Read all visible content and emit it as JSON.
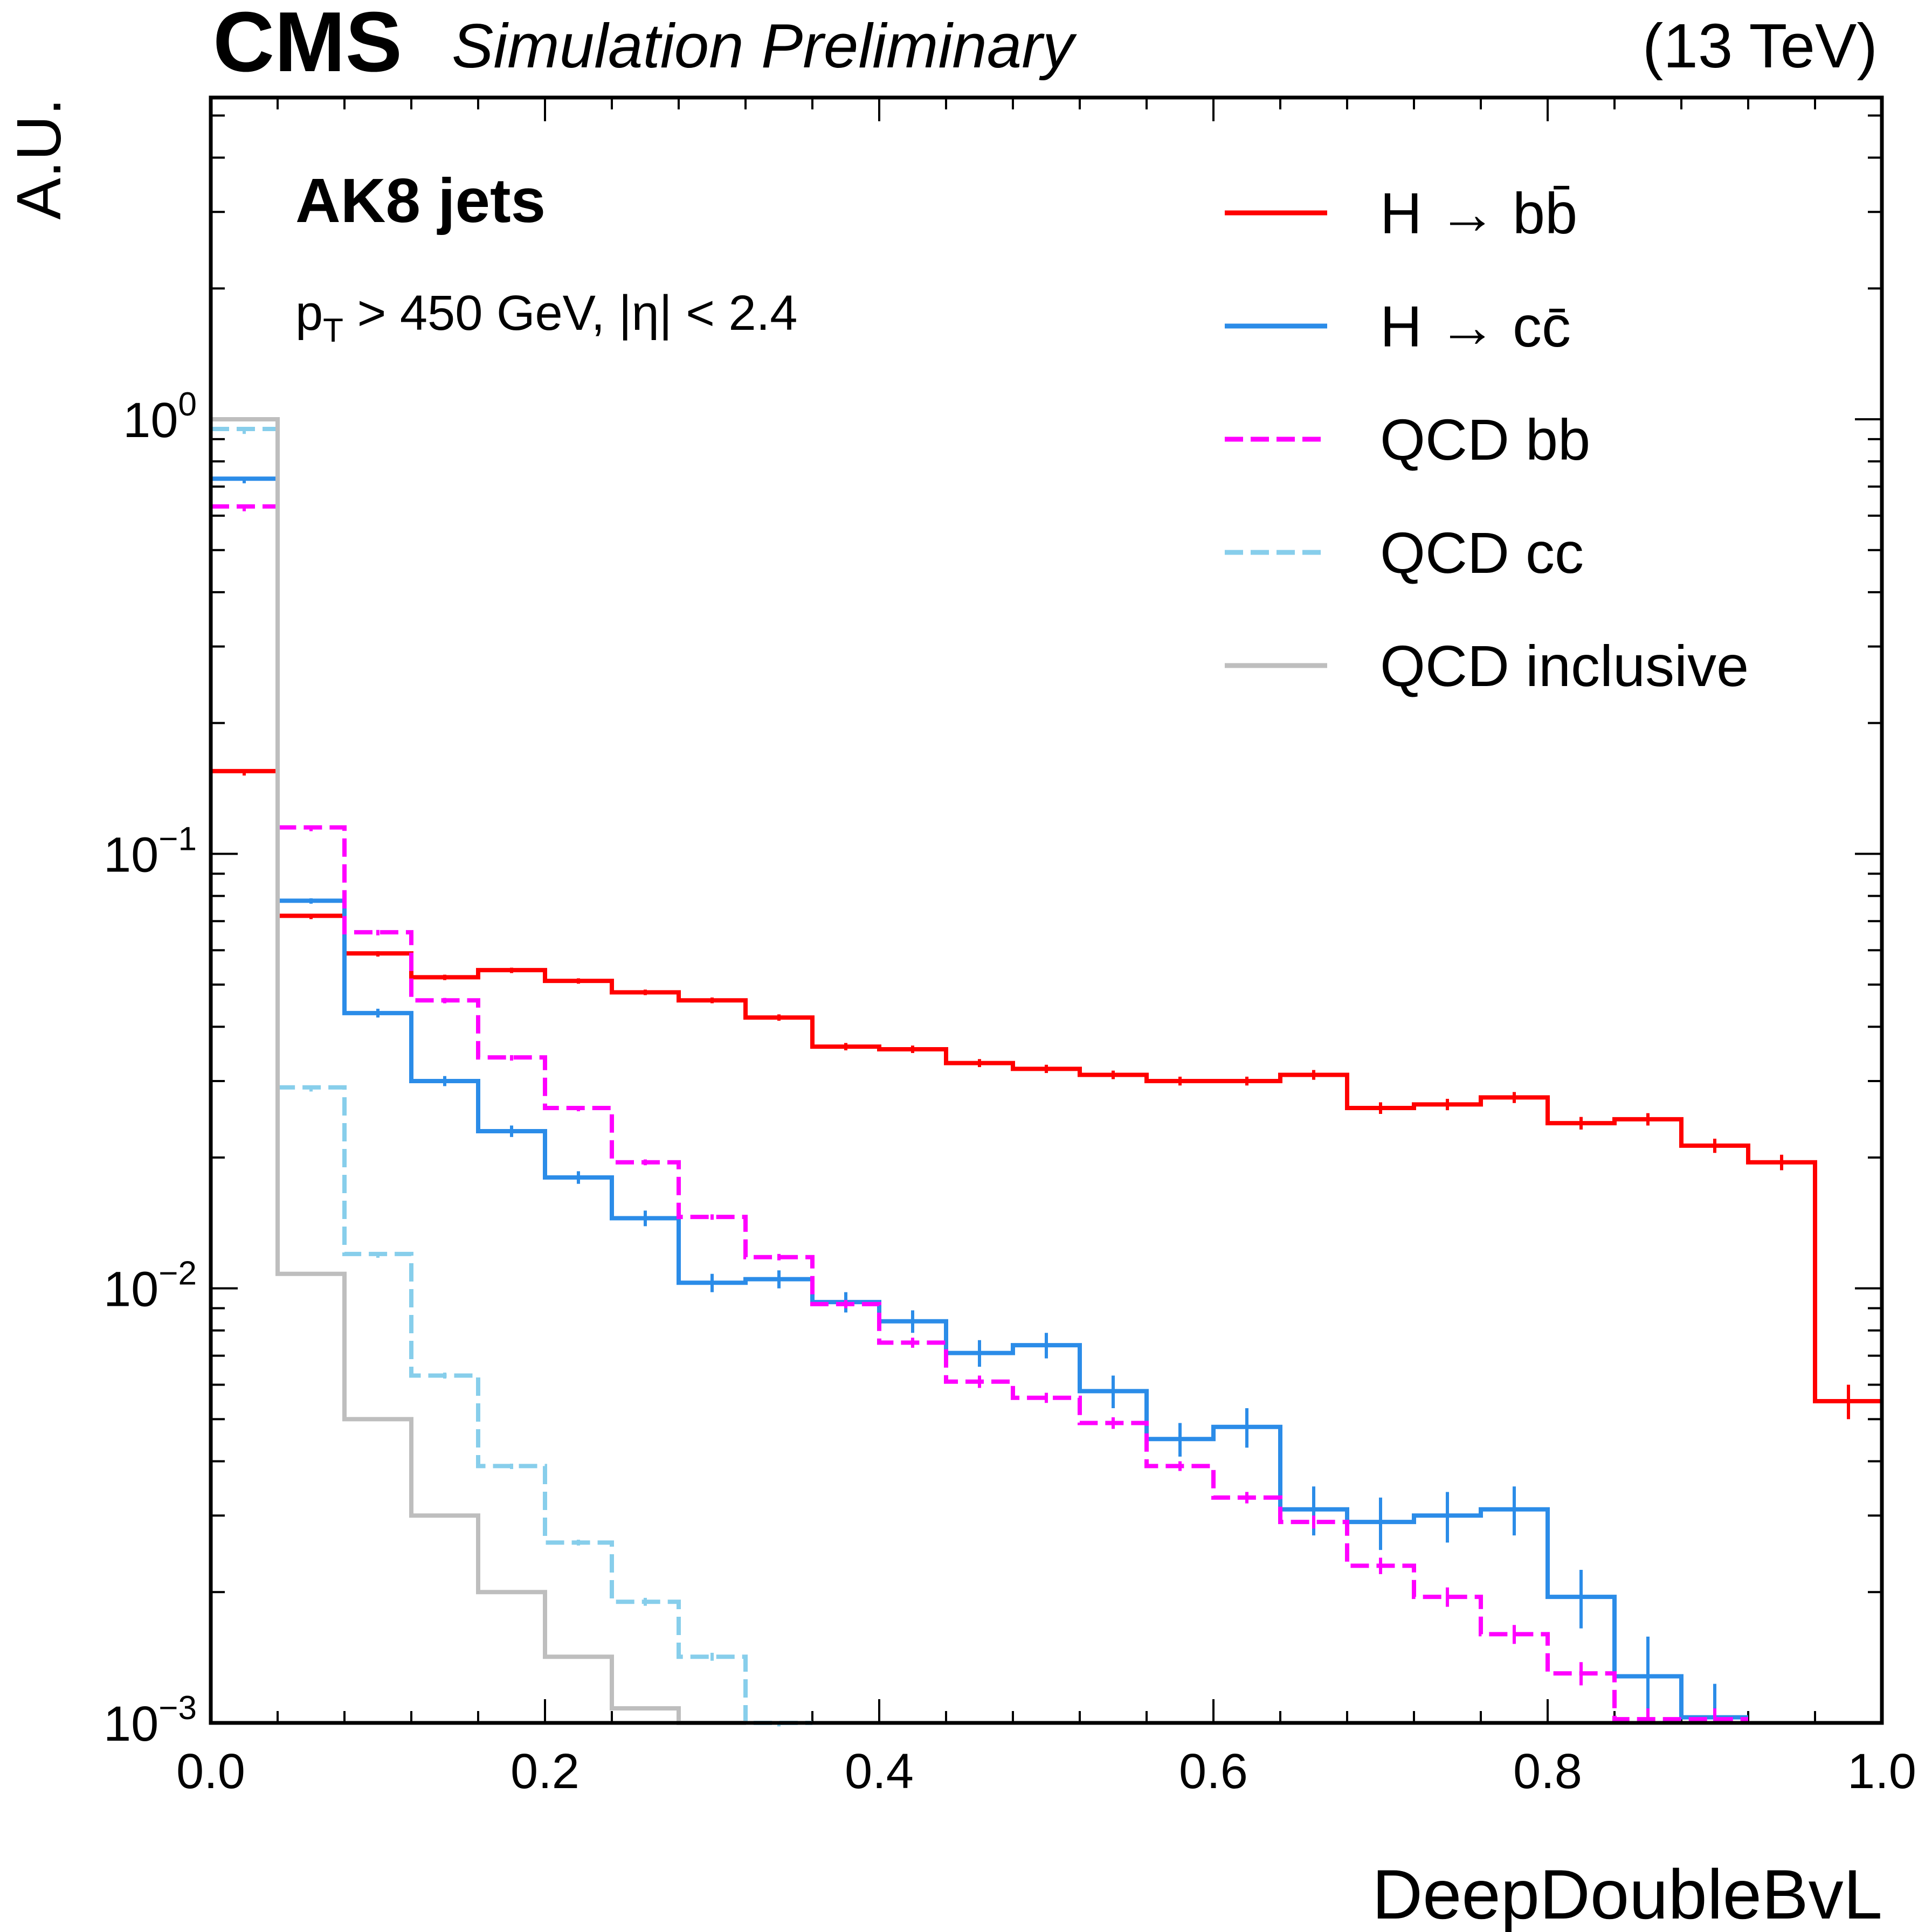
{
  "header": {
    "experiment": "CMS",
    "status": "Simulation Preliminary",
    "energy": "(13 TeV)"
  },
  "annotations": {
    "jets": "AK8 jets",
    "selection_pt": "p",
    "selection_pt_sub": "T",
    "selection_rest": " > 450 GeV, |η| < 2.4"
  },
  "chart_data": {
    "type": "line",
    "drawstyle": "steps",
    "xlabel": "DeepDoubleBvL",
    "ylabel": "A.U.",
    "xlim": [
      0.0,
      1.0
    ],
    "ylim": [
      0.001,
      5.5
    ],
    "yscale": "log",
    "legend_position": "top-right",
    "x_ticks": [
      "0.0",
      "0.2",
      "0.4",
      "0.6",
      "0.8",
      "1.0"
    ],
    "y_ticks": [
      {
        "base": "10",
        "exp": "0",
        "value": 1
      },
      {
        "base": "10",
        "exp": "−1",
        "value": 0.1
      },
      {
        "base": "10",
        "exp": "−2",
        "value": 0.01
      },
      {
        "base": "10",
        "exp": "−3",
        "value": 0.001
      }
    ],
    "bin_edges": [
      0.0,
      0.04,
      0.08,
      0.12,
      0.16,
      0.2,
      0.24,
      0.28,
      0.32,
      0.36,
      0.4,
      0.44,
      0.48,
      0.52,
      0.56,
      0.6,
      0.64,
      0.68,
      0.72,
      0.76,
      0.8,
      0.84,
      0.88,
      0.92,
      0.96,
      1.0
    ],
    "series": [
      {
        "name": "H → bb̄",
        "color": "#ff0000",
        "dash": "solid",
        "values": [
          0.155,
          0.072,
          0.059,
          0.052,
          0.054,
          0.051,
          0.048,
          0.046,
          0.042,
          0.036,
          0.0355,
          0.033,
          0.032,
          0.031,
          0.03,
          0.03,
          0.031,
          0.026,
          0.0265,
          0.0275,
          0.024,
          0.0245,
          0.0213,
          0.0195,
          0.0055
        ],
        "errors": [
          0.0008,
          0.0008,
          0.0007,
          0.0007,
          0.0007,
          0.0007,
          0.0007,
          0.0007,
          0.0007,
          0.0007,
          0.0007,
          0.0007,
          0.0007,
          0.0007,
          0.0007,
          0.0007,
          0.0008,
          0.0008,
          0.0008,
          0.0008,
          0.0008,
          0.0008,
          0.0008,
          0.0008,
          0.0005
        ]
      },
      {
        "name": "H → cc̄",
        "color": "#2b8ce8",
        "dash": "solid",
        "values": [
          0.73,
          0.078,
          0.043,
          0.03,
          0.023,
          0.018,
          0.0145,
          0.0103,
          0.0105,
          0.0093,
          0.0084,
          0.0071,
          0.0074,
          0.0058,
          0.0045,
          0.0048,
          0.0031,
          0.0029,
          0.003,
          0.0031,
          0.00195,
          0.00128,
          0.00103
        ],
        "errors": [
          0.003,
          0.001,
          0.001,
          0.0008,
          0.0007,
          0.0006,
          0.0006,
          0.0005,
          0.0005,
          0.0005,
          0.0005,
          0.0005,
          0.0005,
          0.0005,
          0.0004,
          0.0005,
          0.0004,
          0.0004,
          0.0004,
          0.0004,
          0.0003,
          0.0003,
          0.0002
        ]
      },
      {
        "name": "QCD bb",
        "color": "#ff00ff",
        "dash": "dashed",
        "values": [
          0.63,
          0.115,
          0.066,
          0.046,
          0.034,
          0.026,
          0.0195,
          0.0146,
          0.0118,
          0.0092,
          0.0075,
          0.0061,
          0.0056,
          0.0049,
          0.0039,
          0.0033,
          0.0029,
          0.0023,
          0.00195,
          0.0016,
          0.0013,
          0.00102,
          0.00102
        ],
        "errors": [
          0.002,
          0.001,
          0.0008,
          0.0006,
          0.0004,
          0.0003,
          0.0003,
          0.0002,
          0.0002,
          0.0002,
          0.0002,
          0.0002,
          0.00015,
          0.00015,
          0.0001,
          0.0001,
          0.0001,
          0.0001,
          0.0001,
          8e-05,
          8e-05,
          6e-05,
          6e-05
        ]
      },
      {
        "name": "QCD cc",
        "color": "#87ceeb",
        "dash": "dashed",
        "values": [
          0.95,
          0.029,
          0.012,
          0.0063,
          0.0039,
          0.0026,
          0.0019,
          0.00142,
          0.00098
        ],
        "errors": [
          0.002,
          0.0002,
          0.0001,
          0.0001,
          5e-05,
          4e-05,
          4e-05,
          3e-05,
          3e-05
        ]
      },
      {
        "name": "QCD inclusive",
        "color": "#bebebe",
        "dash": "solid",
        "values": [
          1.0,
          0.0108,
          0.005,
          0.003,
          0.002,
          0.00142,
          0.00108,
          0.00099
        ],
        "errors": [
          0.0,
          0.0,
          0.0,
          0.0,
          0.0,
          0.0,
          0.0,
          0.0
        ]
      }
    ]
  }
}
